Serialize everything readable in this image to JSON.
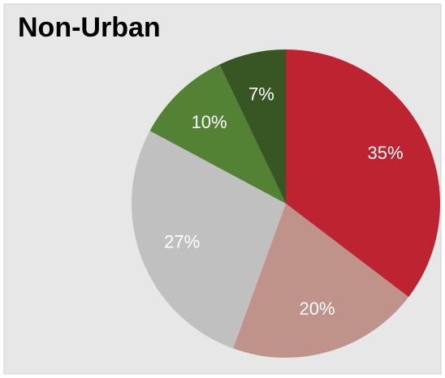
{
  "chart_data": {
    "type": "pie",
    "title": "Non-Urban",
    "values": [
      35,
      20,
      27,
      10,
      7
    ],
    "value_labels": [
      "35%",
      "20%",
      "27%",
      "10%",
      "7%"
    ],
    "colors": [
      "#be2332",
      "#c0938a",
      "#c0c0c0",
      "#548235",
      "#375623"
    ]
  }
}
